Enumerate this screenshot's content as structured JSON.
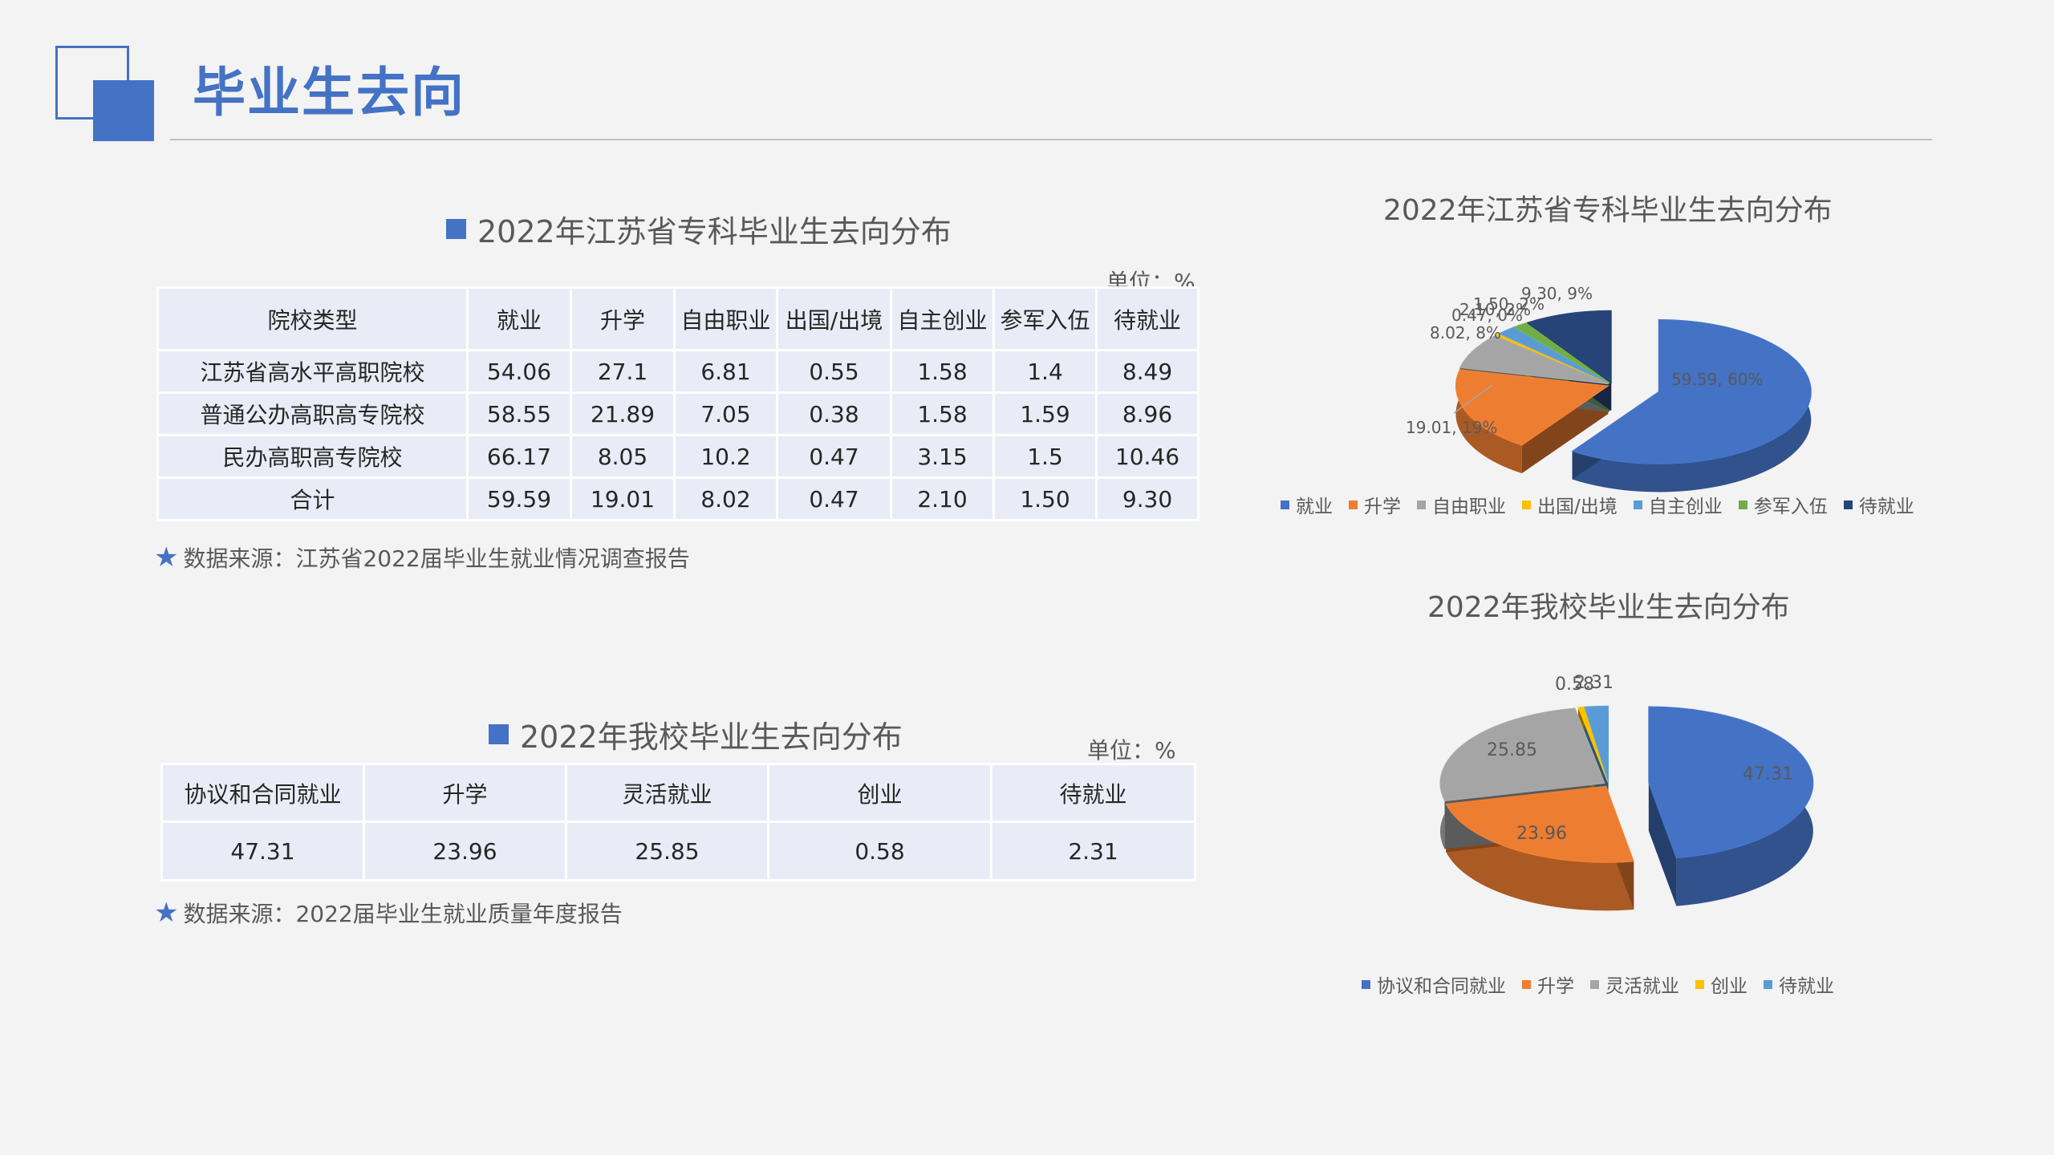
{
  "page": {
    "title": "毕业生去向"
  },
  "table1": {
    "title": "2022年江苏省专科毕业生去向分布",
    "unit": "单位：%",
    "headers": [
      "院校类型",
      "就业",
      "升学",
      "自由职业",
      "出国/出境",
      "自主创业",
      "参军入伍",
      "待就业"
    ],
    "rows": [
      [
        "江苏省高水平高职院校",
        "54.06",
        "27.1",
        "6.81",
        "0.55",
        "1.58",
        "1.4",
        "8.49"
      ],
      [
        "普通公办高职高专院校",
        "58.55",
        "21.89",
        "7.05",
        "0.38",
        "1.58",
        "1.59",
        "8.96"
      ],
      [
        "民办高职高专院校",
        "66.17",
        "8.05",
        "10.2",
        "0.47",
        "3.15",
        "1.5",
        "10.46"
      ],
      [
        "合计",
        "59.59",
        "19.01",
        "8.02",
        "0.47",
        "2.10",
        "1.50",
        "9.30"
      ]
    ],
    "source": "数据来源：江苏省2022届毕业生就业情况调查报告"
  },
  "table2": {
    "title": "2022年我校毕业生去向分布",
    "unit": "单位：%",
    "headers": [
      "协议和合同就业",
      "升学",
      "灵活就业",
      "创业",
      "待就业"
    ],
    "rows": [
      [
        "47.31",
        "23.96",
        "25.85",
        "0.58",
        "2.31"
      ]
    ],
    "source": "数据来源：2022届毕业生就业质量年度报告"
  },
  "colors": {
    "accent": "#4472c4"
  },
  "chart_data": [
    {
      "type": "pie",
      "title": "2022年江苏省专科毕业生去向分布",
      "categories": [
        "就业",
        "升学",
        "自由职业",
        "出国/出境",
        "自主创业",
        "参军入伍",
        "待就业"
      ],
      "values": [
        59.59,
        19.01,
        8.02,
        0.47,
        2.1,
        1.5,
        9.3
      ],
      "data_labels": [
        "59.59, 60%",
        "19.01, 19%",
        "8.02, 8%",
        "0.47, 0%",
        "2.10, 2%",
        "1.50, 2%",
        "9.30, 9%"
      ],
      "colors": [
        "#4472c4",
        "#ed7d31",
        "#a5a5a5",
        "#ffc000",
        "#5b9bd5",
        "#70ad47",
        "#264478"
      ],
      "legend_position": "bottom",
      "exploded": "就业"
    },
    {
      "type": "pie",
      "title": "2022年我校毕业生去向分布",
      "categories": [
        "协议和合同就业",
        "升学",
        "灵活就业",
        "创业",
        "待就业"
      ],
      "values": [
        47.31,
        23.96,
        25.85,
        0.58,
        2.31
      ],
      "data_labels": [
        "47.31",
        "23.96",
        "25.85",
        "0.58",
        "2.31"
      ],
      "colors": [
        "#4472c4",
        "#ed7d31",
        "#a5a5a5",
        "#ffc000",
        "#5b9bd5"
      ],
      "legend_position": "bottom",
      "exploded": "协议和合同就业"
    }
  ]
}
